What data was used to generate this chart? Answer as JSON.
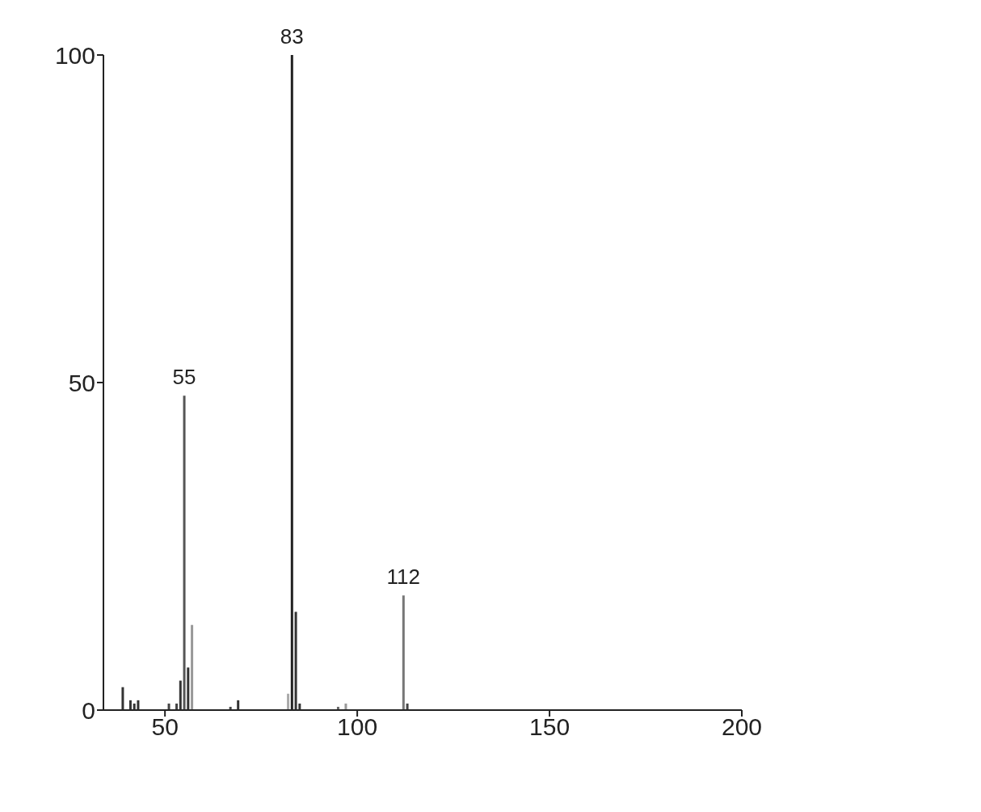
{
  "chart_data": {
    "type": "bar",
    "x": [
      39,
      41,
      42,
      43,
      51,
      53,
      54,
      55,
      56,
      57,
      67,
      69,
      82,
      83,
      84,
      85,
      95,
      97,
      112,
      113
    ],
    "values": [
      3.5,
      1.5,
      1,
      1.5,
      1,
      1,
      4.5,
      48,
      6.5,
      13,
      0.5,
      1.5,
      2.5,
      100,
      15,
      1,
      0.5,
      1,
      17.5,
      1
    ],
    "colors": [
      "#333333",
      "#333333",
      "#333333",
      "#333333",
      "#444444",
      "#444444",
      "#333333",
      "#555555",
      "#333333",
      "#999999",
      "#444444",
      "#333333",
      "#aaaaaa",
      "#222222",
      "#333333",
      "#333333",
      "#666666",
      "#999999",
      "#777777",
      "#444444"
    ],
    "annotations": [
      {
        "text": "55",
        "x": 55,
        "y": 48
      },
      {
        "text": "83",
        "x": 83,
        "y": 100
      },
      {
        "text": "112",
        "x": 112,
        "y": 17.5
      }
    ],
    "xlim": [
      34,
      200
    ],
    "xticks": [
      50,
      100,
      150,
      200
    ],
    "ylim": [
      0,
      100
    ],
    "yticks": [
      0,
      50,
      100
    ],
    "grid": false,
    "legend": false
  }
}
